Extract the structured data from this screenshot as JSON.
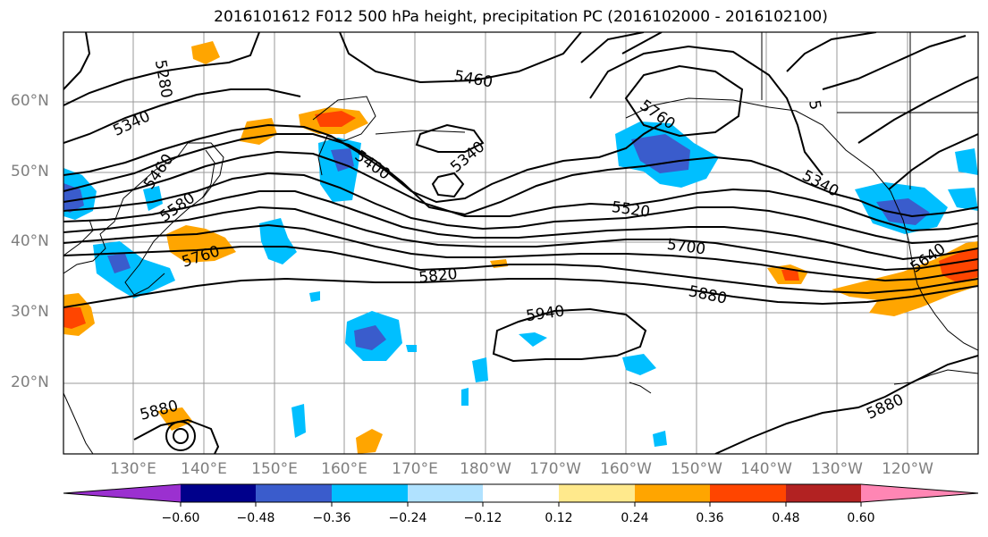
{
  "title": "2016101612 F012 500 hPa height, precipitation PC (2016102000 - 2016102100)",
  "map": {
    "lat_labels": [
      "60°N",
      "50°N",
      "40°N",
      "30°N",
      "20°N"
    ],
    "lon_labels": [
      "130°E",
      "140°E",
      "150°E",
      "160°E",
      "170°E",
      "180°W",
      "170°W",
      "160°W",
      "150°W",
      "140°W",
      "130°W",
      "120°W"
    ],
    "contour_labels": [
      "5280",
      "5340",
      "5460",
      "5580",
      "5760",
      "5400",
      "5340",
      "5460",
      "5520",
      "5700",
      "5820",
      "5880",
      "5940",
      "5880",
      "5880",
      "5340",
      "5640",
      "5760",
      "5"
    ]
  },
  "colorbar": {
    "colors": [
      "#9b30d0",
      "#00008b",
      "#3a5ccc",
      "#00bfff",
      "#b0e2ff",
      "#ffffff",
      "#ffe98c",
      "#ffa500",
      "#ff4500",
      "#b22222",
      "#ff86b4"
    ],
    "tick_labels": [
      "−0.60",
      "−0.48",
      "−0.36",
      "−0.24",
      "−0.12",
      "0.12",
      "0.24",
      "0.36",
      "0.48",
      "0.60"
    ]
  }
}
